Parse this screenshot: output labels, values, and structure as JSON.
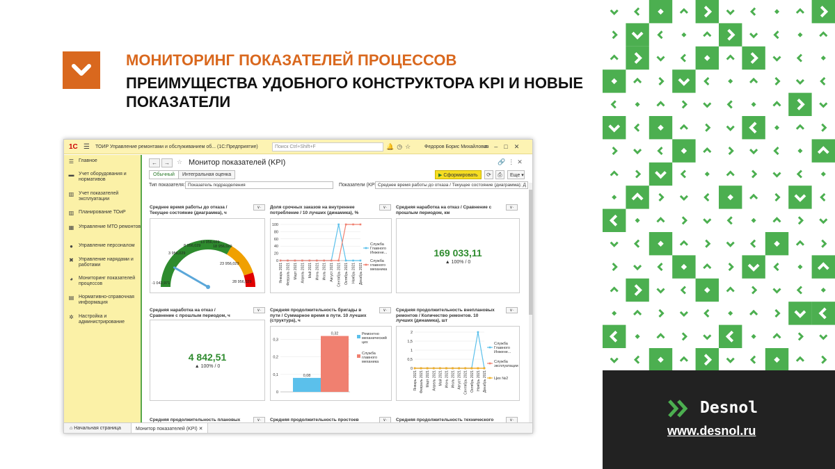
{
  "slide": {
    "title": "МОНИТОРИНГ ПОКАЗАТЕЛЕЙ ПРОЦЕССОВ",
    "subtitle": "ПРЕИМУЩЕСТВА УДОБНОГО КОНСТРУКТОРА KPI И НОВЫЕ ПОКАЗАТЕЛИ",
    "accent_color": "#d9681e",
    "pattern_color": "#4caf50"
  },
  "brand": {
    "name": "Desnol",
    "url": "www.desnol.ru",
    "logo_icon": "double-chevron-right-icon"
  },
  "app": {
    "title": "ТОИР Управление ремонтами и обслуживанием об... (1С:Предприятие)",
    "search_placeholder": "Поиск Ctrl+Shift+F",
    "user": "Федоров Борис Михайлович",
    "sidebar": [
      {
        "label": "Главное",
        "icon": "menu-icon"
      },
      {
        "label": "Учет оборудования и нормативов",
        "icon": "truck-icon"
      },
      {
        "label": "Учет показателей эксплуатации",
        "icon": "chart-icon"
      },
      {
        "label": "Планирование ТОиР",
        "icon": "chart-icon"
      },
      {
        "label": "Управление МТО ремонтов",
        "icon": "grid-icon"
      },
      {
        "label": "Управление персоналом",
        "icon": "person-icon"
      },
      {
        "label": "Управление нарядами и работами",
        "icon": "tools-icon"
      },
      {
        "label": "Мониторинг показателей процессов",
        "icon": "pie-icon"
      },
      {
        "label": "Нормативно-справочная информация",
        "icon": "book-icon"
      },
      {
        "label": "Настройка и администрирование",
        "icon": "gear-icon"
      }
    ],
    "page_title": "Монитор показателей (KPI)",
    "mode_tabs": [
      "Обычный",
      "Интегральная оценка"
    ],
    "form_button": "Сформировать",
    "more_button": "Еще",
    "filter_type_label": "Тип показателя:",
    "filter_type_value": "Показатель подразделения",
    "filter_kpi_label": "Показатели (KPI):",
    "filter_kpi_value": "Среднее время работы до отказа / Текущее состояние (диаграмма); Д",
    "bottom_tabs": [
      "Начальная страница",
      "Монитор показателей (KPI)"
    ]
  },
  "panels": {
    "p1": {
      "title": "Среднее время работы до отказа /\nТекущее состояние (диаграмма), ч"
    },
    "p2": {
      "title": "Доля срочных заказов на внутреннее\nпотребление / 10 лучших (динамика), %"
    },
    "p3": {
      "title": "Средняя наработка на отказ / Сравнение с\nпрошлым периодом, км",
      "value": "169 033,11",
      "delta": "▲ 100% / 0"
    },
    "p4": {
      "title": "Средняя наработка на отказ /\nСравнение с прошлым периодом, ч",
      "value": "4 842,51",
      "delta": "▲ 100% / 0"
    },
    "p5": {
      "title": "Средняя продолжительность бригады в\nпути / Суммарное время в пути. 10 лучших\n(структура), ч"
    },
    "p6": {
      "title": "Средняя продолжительность внеплановых\nремонтов / Количество ремонтов. 10\nлучших (динамика), шт"
    },
    "p7": {
      "title": "Средняя продолжительность плановых"
    },
    "p8": {
      "title": "Средняя продолжительность простоев"
    },
    "p9": {
      "title": "Средняя продолжительность технического"
    }
  },
  "chart_data": [
    {
      "type": "gauge",
      "title": "Среднее время работы до отказа / Текущее состояние (диаграмма), ч",
      "scale_labels": [
        "-1 043,971",
        "3 956,029",
        "8 956,029",
        "13 956,029",
        "18 956,029",
        "23 956,029",
        "28 956,029"
      ],
      "range": [
        -1043.971,
        28956.029
      ],
      "value": 3956.029,
      "band_colors": [
        "#2e8b2e",
        "#f0a000",
        "#e00000"
      ]
    },
    {
      "type": "line",
      "title": "Доля срочных заказов на внутреннее потребление / 10 лучших (динамика), %",
      "categories": [
        "Январь 2021",
        "Февраль 2021",
        "Март 2021",
        "Апрель 2021",
        "Май 2021",
        "Июнь 2021",
        "Июль 2021",
        "Август 2021",
        "Сентябрь 2021",
        "Октябрь 2021",
        "Ноябрь 2021",
        "Декабрь 2021"
      ],
      "ylim": [
        0,
        100
      ],
      "yticks": [
        0,
        20,
        40,
        60,
        80,
        100
      ],
      "series": [
        {
          "name": "Служба Главного Инжене...",
          "color": "#5bc0eb",
          "values": [
            0,
            0,
            0,
            0,
            0,
            0,
            0,
            0,
            100,
            0,
            0,
            0
          ]
        },
        {
          "name": "Служба главного механика",
          "color": "#f08070",
          "values": [
            0,
            0,
            0,
            0,
            0,
            0,
            0,
            0,
            0,
            100,
            100,
            100
          ]
        }
      ]
    },
    {
      "type": "bar",
      "title": "Средняя продолжительность бригады в пути / Суммарное время в пути. 10 лучших (структура), ч",
      "ylim": [
        0,
        0.35
      ],
      "yticks": [
        0,
        0.1,
        0.2,
        0.3
      ],
      "series": [
        {
          "name": "Ремонтно-механический цех",
          "color": "#5bc0eb",
          "value": 0.08
        },
        {
          "name": "Служба главного механика",
          "color": "#f08070",
          "value": 0.32
        }
      ]
    },
    {
      "type": "line",
      "title": "Средняя продолжительность внеплановых ремонтов / Количество ремонтов. 10 лучших (динамика), шт",
      "categories": [
        "Январь 2021",
        "Февраль 2021",
        "Март 2021",
        "Апрель 2021",
        "Май 2021",
        "Июнь 2021",
        "Июль 2021",
        "Август 2021",
        "Сентябрь 2021",
        "Октябрь 2021",
        "Ноябрь 2021",
        "Декабрь 2021"
      ],
      "ylim": [
        0,
        2
      ],
      "yticks": [
        0,
        0.5,
        1,
        1.5,
        2
      ],
      "series": [
        {
          "name": "Служба Главного Инжене...",
          "color": "#5bc0eb",
          "values": [
            0,
            0,
            0,
            0,
            0,
            0,
            0,
            0,
            0,
            0,
            2,
            0
          ]
        },
        {
          "name": "Служба эксплуатации",
          "color": "#f08070",
          "values": [
            0,
            0,
            0,
            0,
            0,
            0,
            0,
            0,
            0,
            0,
            0,
            0
          ]
        },
        {
          "name": "Цех №2",
          "color": "#f0b020",
          "values": [
            0,
            0,
            0,
            0,
            0,
            0,
            0,
            0,
            0,
            0,
            0,
            0
          ]
        }
      ]
    }
  ]
}
